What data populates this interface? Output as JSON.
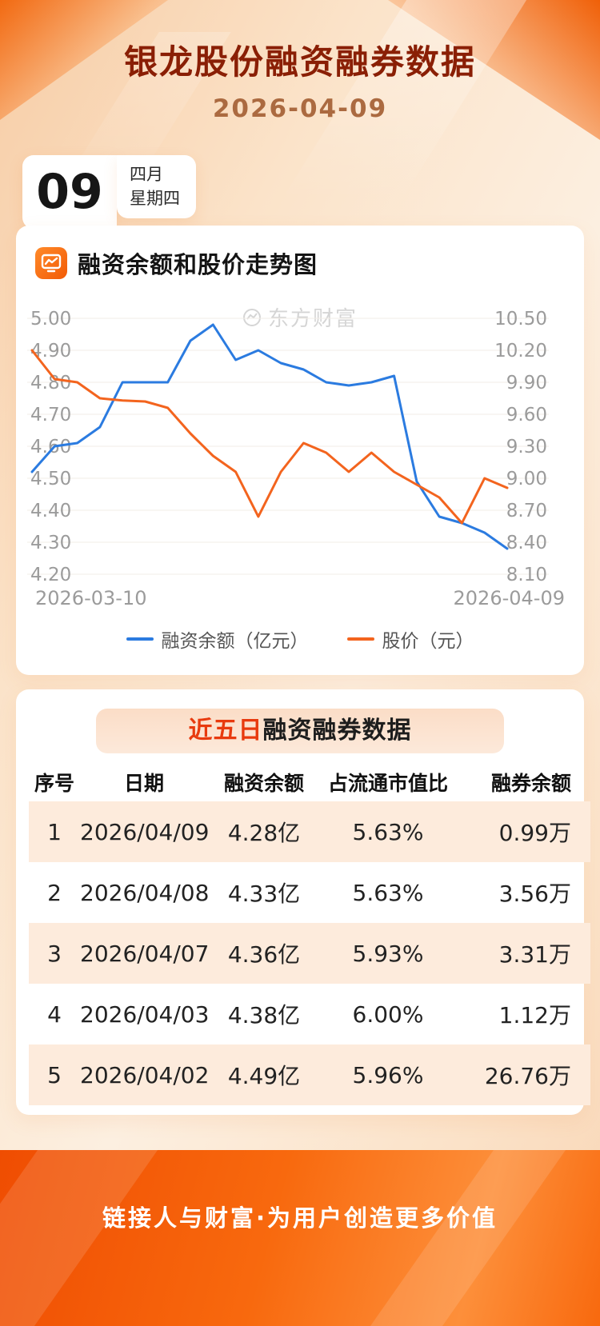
{
  "page": {
    "title": "银龙股份融资融券数据",
    "subtitle_date": "2026-04-09"
  },
  "date_badge": {
    "day": "09",
    "month": "四月",
    "weekday": "星期四"
  },
  "watermark_text": "东方财富",
  "chart_card": {
    "heading": "融资余额和股价走势图",
    "x_start_label": "2026-03-10",
    "x_end_label": "2026-04-09",
    "legend": [
      {
        "label": "融资余额（亿元）",
        "color": "#2b7be0"
      },
      {
        "label": "股价（元）",
        "color": "#f3641e"
      }
    ]
  },
  "chart_data": {
    "type": "line",
    "title": "融资余额和股价走势图",
    "grid": true,
    "legend_position": "bottom",
    "x": [
      "2026-03-10",
      "2026-03-11",
      "2026-03-12",
      "2026-03-13",
      "2026-03-16",
      "2026-03-17",
      "2026-03-18",
      "2026-03-19",
      "2026-03-20",
      "2026-03-23",
      "2026-03-24",
      "2026-03-25",
      "2026-03-26",
      "2026-03-27",
      "2026-03-30",
      "2026-03-31",
      "2026-04-01",
      "2026-04-02",
      "2026-04-03",
      "2026-04-07",
      "2026-04-08",
      "2026-04-09"
    ],
    "left_axis": {
      "min": 4.2,
      "max": 5.0,
      "ticks": [
        "5.00",
        "4.90",
        "4.80",
        "4.70",
        "4.60",
        "4.50",
        "4.40",
        "4.30",
        "4.20"
      ]
    },
    "right_axis": {
      "min": 8.1,
      "max": 10.5,
      "ticks": [
        "10.50",
        "10.20",
        "9.90",
        "9.60",
        "9.30",
        "9.00",
        "8.70",
        "8.40",
        "8.10"
      ]
    },
    "series": [
      {
        "key": "margin_balance",
        "name": "融资余额（亿元）",
        "axis": "left",
        "color": "#2b7be0",
        "values": [
          4.52,
          4.6,
          4.61,
          4.66,
          4.8,
          4.8,
          4.8,
          4.93,
          4.98,
          4.87,
          4.9,
          4.86,
          4.84,
          4.8,
          4.79,
          4.8,
          4.82,
          4.49,
          4.38,
          4.36,
          4.33,
          4.28
        ]
      },
      {
        "key": "stock_price",
        "name": "股价（元）",
        "axis": "right",
        "color": "#f3641e",
        "values": [
          10.2,
          9.93,
          9.9,
          9.75,
          9.73,
          9.72,
          9.66,
          9.42,
          9.21,
          9.06,
          8.64,
          9.06,
          9.33,
          9.24,
          9.06,
          9.24,
          9.06,
          8.94,
          8.82,
          8.58,
          9.0,
          8.91
        ]
      }
    ]
  },
  "table_card": {
    "heading_highlight": "近五日",
    "heading_rest": "融资融券数据",
    "columns": [
      "序号",
      "日期",
      "融资余额",
      "占流通市值比",
      "融券余额"
    ],
    "rows": [
      [
        "1",
        "2026/04/09",
        "4.28亿",
        "5.63%",
        "0.99万"
      ],
      [
        "2",
        "2026/04/08",
        "4.33亿",
        "5.63%",
        "3.56万"
      ],
      [
        "3",
        "2026/04/07",
        "4.36亿",
        "5.93%",
        "3.31万"
      ],
      [
        "4",
        "2026/04/03",
        "4.38亿",
        "6.00%",
        "1.12万"
      ],
      [
        "5",
        "2026/04/02",
        "4.49亿",
        "5.96%",
        "26.76万"
      ]
    ]
  },
  "footer": {
    "slogan": "链接人与财富·为用户创造更多价值"
  },
  "colors": {
    "title_red": "#8a1f05",
    "highlight_red": "#e83a0e",
    "accent_orange": "#f2610d",
    "line_blue": "#2b7be0",
    "line_orange": "#f3641e"
  }
}
